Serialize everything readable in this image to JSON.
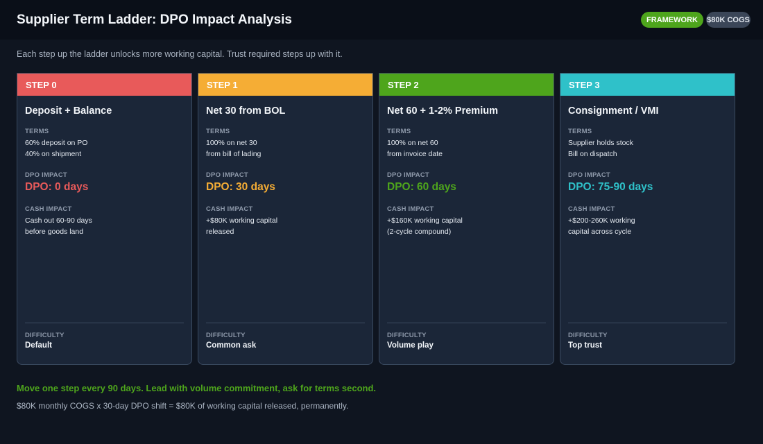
{
  "header": {
    "title": "Supplier Term Ladder: DPO Impact Analysis",
    "badges": [
      {
        "label": "FRAMEWORK",
        "color": "#4ea51c"
      },
      {
        "label": "$80K COGS",
        "color": "#3b4658"
      }
    ]
  },
  "subtitle": "Each step up the ladder unlocks more working capital. Trust required steps up with it.",
  "labels": {
    "terms": "TERMS",
    "dpo_impact": "DPO IMPACT",
    "cash_impact": "CASH IMPACT",
    "difficulty": "DIFFICULTY"
  },
  "steps": [
    {
      "step": "STEP 0",
      "color": "#e85a5a",
      "title": "Deposit + Balance",
      "terms": "60% deposit on PO\n40% on shipment",
      "dpo": "DPO: 0 days",
      "cash": "Cash out 60-90 days\nbefore goods land",
      "difficulty": "Default"
    },
    {
      "step": "STEP 1",
      "color": "#f5ad35",
      "title": "Net 30 from BOL",
      "terms": "100% on net 30\nfrom bill of lading",
      "dpo": "DPO: 30 days",
      "cash": "+$80K working capital\nreleased",
      "difficulty": "Common ask"
    },
    {
      "step": "STEP 2",
      "color": "#4ea51c",
      "title": "Net 60 + 1-2% Premium",
      "terms": "100% on net 60\nfrom invoice date",
      "dpo": "DPO: 60 days",
      "cash": "+$160K working capital\n(2-cycle compound)",
      "difficulty": "Volume play"
    },
    {
      "step": "STEP 3",
      "color": "#2fc1c9",
      "title": "Consignment / VMI",
      "terms": "Supplier holds stock\nBill on dispatch",
      "dpo": "DPO: 75-90 days",
      "cash": "+$200-260K working\ncapital across cycle",
      "difficulty": "Top trust"
    }
  ],
  "footer": {
    "headline": "Move one step every 90 days. Lead with volume commitment, ask for terms second.",
    "note": "$80K monthly COGS x 30-day DPO shift = $80K of working capital released, permanently."
  }
}
